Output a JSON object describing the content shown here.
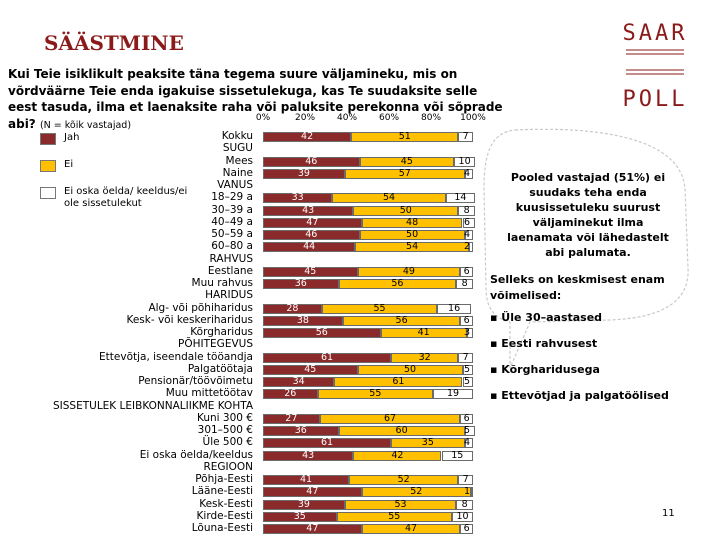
{
  "slide": {
    "title": "SÄÄSTMINE",
    "question": "Kui Teie isiklikult peaksite täna tegema suure väljamineku, mis on võrdväärne Teie enda igakuise sissetulekuga, kas Te suudaksite selle eest tasuda, ilma et laenaksite raha või paluksite perekonna või sõprade abi?",
    "note": "(N = kõik vastajad)",
    "page_number": "11",
    "logo": {
      "top": "SAAR",
      "bottom": "POLL"
    },
    "callout": "Pooled vastajad (51%) ei suudaks teha enda kuusissetuleku suurust väljaminekut ilma laenamata või lähedastelt abi palumata.",
    "more_capable_heading": "Selleks on keskmisest enam võimelised:",
    "bullets": [
      "Üle 30–aastased",
      "Eesti rahvusest",
      "Kõrgharidusega",
      "Ettevõtjad ja palgatöölised"
    ],
    "colors": {
      "title": "#8b1a1a",
      "jah": "#8b2a2a",
      "ei": "#ffc000",
      "eos": "#ffffff"
    }
  },
  "chart_data": {
    "type": "bar",
    "stacked": true,
    "orientation": "horizontal",
    "x_ticks": [
      "0%",
      "20%",
      "40%",
      "60%",
      "80%",
      "100%"
    ],
    "xlim": [
      0,
      100
    ],
    "series": [
      {
        "name": "Jah",
        "color": "#8b2a2a"
      },
      {
        "name": "Ei",
        "color": "#ffc000"
      },
      {
        "name": "Ei oska öelda/ keeldus/ei ole sissetulekut",
        "color": "#ffffff"
      }
    ],
    "rows": [
      {
        "label": "Kokku",
        "values": [
          42,
          51,
          7
        ]
      },
      {
        "label": "SUGU",
        "header": true
      },
      {
        "label": "Mees",
        "values": [
          46,
          45,
          10
        ]
      },
      {
        "label": "Naine",
        "values": [
          39,
          57,
          4
        ]
      },
      {
        "label": "VANUS",
        "header": true
      },
      {
        "label": "18–29 a",
        "values": [
          33,
          54,
          14
        ]
      },
      {
        "label": "30–39 a",
        "values": [
          43,
          50,
          8
        ]
      },
      {
        "label": "40–49 a",
        "values": [
          47,
          48,
          6
        ]
      },
      {
        "label": "50–59 a",
        "values": [
          46,
          50,
          4
        ]
      },
      {
        "label": "60–80 a",
        "values": [
          44,
          54,
          2
        ]
      },
      {
        "label": "RAHVUS",
        "header": true
      },
      {
        "label": "Eestlane",
        "values": [
          45,
          49,
          6
        ]
      },
      {
        "label": "Muu rahvus",
        "values": [
          36,
          56,
          8
        ]
      },
      {
        "label": "HARIDUS",
        "header": true
      },
      {
        "label": "Alg- või põhiharidus",
        "values": [
          28,
          55,
          16
        ]
      },
      {
        "label": "Kesk- või keskeriharidus",
        "values": [
          38,
          56,
          6
        ]
      },
      {
        "label": "Kõrgharidus",
        "values": [
          56,
          41,
          3
        ]
      },
      {
        "label": "PÕHITEGEVUS",
        "header": true
      },
      {
        "label": "Ettevõtja, iseendale tööandja",
        "values": [
          61,
          32,
          7
        ]
      },
      {
        "label": "Palgatöötaja",
        "values": [
          45,
          50,
          5
        ]
      },
      {
        "label": "Pensionär/töövõimetu",
        "values": [
          34,
          61,
          5
        ]
      },
      {
        "label": "Muu mittetöötav",
        "values": [
          26,
          55,
          19
        ]
      },
      {
        "label": "SISSETULEK LEIBKONNALIIKME KOHTA",
        "header": true
      },
      {
        "label": "Kuni 300 €",
        "values": [
          27,
          67,
          6
        ]
      },
      {
        "label": "301–500 €",
        "values": [
          36,
          60,
          5
        ]
      },
      {
        "label": "Üle 500 €",
        "values": [
          61,
          35,
          4
        ]
      },
      {
        "label": "Ei oska öelda/keeldus",
        "values": [
          43,
          42,
          15
        ]
      },
      {
        "label": "REGIOON",
        "header": true
      },
      {
        "label": "Põhja-Eesti",
        "values": [
          41,
          52,
          7
        ]
      },
      {
        "label": "Lääne-Eesti",
        "values": [
          47,
          52,
          1
        ]
      },
      {
        "label": "Kesk-Eesti",
        "values": [
          39,
          53,
          8
        ]
      },
      {
        "label": "Kirde-Eesti",
        "values": [
          35,
          55,
          10
        ]
      },
      {
        "label": "Lõuna-Eesti",
        "values": [
          47,
          47,
          6
        ]
      }
    ]
  }
}
